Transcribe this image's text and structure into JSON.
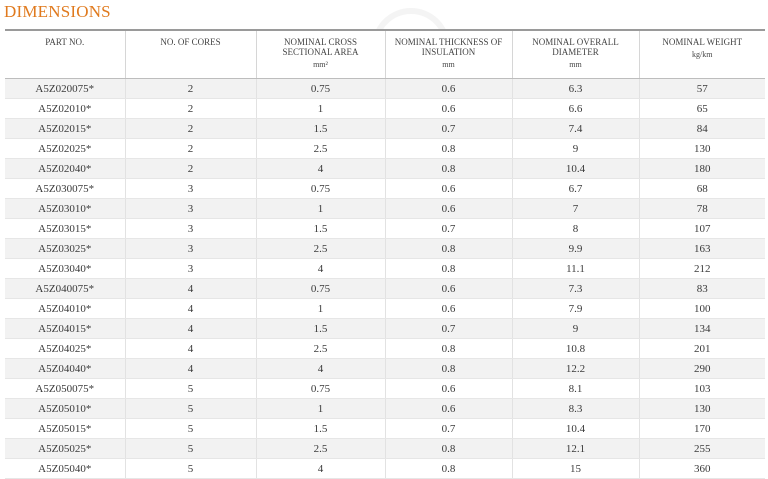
{
  "title": "DIMENSIONS",
  "headers": [
    {
      "label": "PART NO.",
      "unit": ""
    },
    {
      "label": "NO. OF CORES",
      "unit": ""
    },
    {
      "label": "NOMINAL CROSS SECTIONAL AREA",
      "unit": "mm²"
    },
    {
      "label": "NOMINAL THICKNESS OF INSULATION",
      "unit": "mm"
    },
    {
      "label": "NOMINAL OVERALL DIAMETER",
      "unit": "mm"
    },
    {
      "label": "NOMINAL WEIGHT",
      "unit": "kg/km"
    }
  ],
  "rows": [
    [
      "A5Z020075*",
      "2",
      "0.75",
      "0.6",
      "6.3",
      "57"
    ],
    [
      "A5Z02010*",
      "2",
      "1",
      "0.6",
      "6.6",
      "65"
    ],
    [
      "A5Z02015*",
      "2",
      "1.5",
      "0.7",
      "7.4",
      "84"
    ],
    [
      "A5Z02025*",
      "2",
      "2.5",
      "0.8",
      "9",
      "130"
    ],
    [
      "A5Z02040*",
      "2",
      "4",
      "0.8",
      "10.4",
      "180"
    ],
    [
      "A5Z030075*",
      "3",
      "0.75",
      "0.6",
      "6.7",
      "68"
    ],
    [
      "A5Z03010*",
      "3",
      "1",
      "0.6",
      "7",
      "78"
    ],
    [
      "A5Z03015*",
      "3",
      "1.5",
      "0.7",
      "8",
      "107"
    ],
    [
      "A5Z03025*",
      "3",
      "2.5",
      "0.8",
      "9.9",
      "163"
    ],
    [
      "A5Z03040*",
      "3",
      "4",
      "0.8",
      "11.1",
      "212"
    ],
    [
      "A5Z040075*",
      "4",
      "0.75",
      "0.6",
      "7.3",
      "83"
    ],
    [
      "A5Z04010*",
      "4",
      "1",
      "0.6",
      "7.9",
      "100"
    ],
    [
      "A5Z04015*",
      "4",
      "1.5",
      "0.7",
      "9",
      "134"
    ],
    [
      "A5Z04025*",
      "4",
      "2.5",
      "0.8",
      "10.8",
      "201"
    ],
    [
      "A5Z04040*",
      "4",
      "4",
      "0.8",
      "12.2",
      "290"
    ],
    [
      "A5Z050075*",
      "5",
      "0.75",
      "0.6",
      "8.1",
      "103"
    ],
    [
      "A5Z05010*",
      "5",
      "1",
      "0.6",
      "8.3",
      "130"
    ],
    [
      "A5Z05015*",
      "5",
      "1.5",
      "0.7",
      "10.4",
      "170"
    ],
    [
      "A5Z05025*",
      "5",
      "2.5",
      "0.8",
      "12.1",
      "255"
    ],
    [
      "A5Z05040*",
      "5",
      "4",
      "0.8",
      "15",
      "360"
    ]
  ]
}
